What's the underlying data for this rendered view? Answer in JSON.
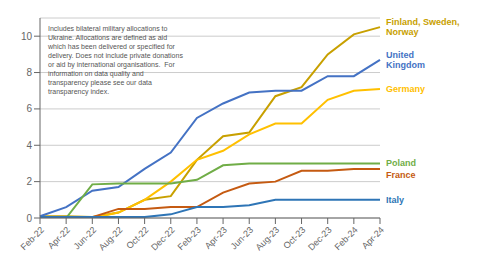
{
  "chart_data": {
    "type": "line",
    "categories": [
      "Feb-22",
      "Apr-22",
      "Jun-22",
      "Aug-22",
      "Oct-22",
      "Dec-22",
      "Feb-23",
      "Apr-23",
      "Jun-23",
      "Aug-23",
      "Oct-23",
      "Dec-23",
      "Feb-24",
      "Apr-24"
    ],
    "series": [
      {
        "name": "Finland, Sweden,\nNorway",
        "color": "#c8a000",
        "values": [
          0.1,
          0.1,
          0.05,
          0.3,
          1.0,
          1.2,
          3.2,
          4.5,
          4.7,
          6.7,
          7.2,
          9.0,
          10.1,
          10.5
        ]
      },
      {
        "name": "United\nKingdom",
        "color": "#4472c4",
        "values": [
          0.1,
          0.6,
          1.5,
          1.7,
          2.7,
          3.6,
          5.5,
          6.3,
          6.9,
          7.0,
          7.0,
          7.8,
          7.8,
          8.7
        ]
      },
      {
        "name": "Germany",
        "color": "#ffc000",
        "values": [
          0.0,
          0.0,
          0.0,
          0.3,
          1.0,
          2.0,
          3.2,
          3.7,
          4.6,
          5.2,
          5.2,
          6.5,
          7.0,
          7.1
        ]
      },
      {
        "name": "Poland",
        "color": "#70ad47",
        "values": [
          0.0,
          0.0,
          1.85,
          1.9,
          1.9,
          1.9,
          2.1,
          2.9,
          3.0,
          3.0,
          3.0,
          3.0,
          3.0,
          3.0
        ]
      },
      {
        "name": "France",
        "color": "#c55a11",
        "values": [
          0.05,
          0.05,
          0.05,
          0.5,
          0.5,
          0.6,
          0.6,
          1.4,
          1.9,
          2.0,
          2.6,
          2.6,
          2.7,
          2.7
        ]
      },
      {
        "name": "Italy",
        "color": "#2e75b6",
        "values": [
          0.05,
          0.05,
          0.05,
          0.05,
          0.05,
          0.2,
          0.6,
          0.6,
          0.7,
          1.0,
          1.0,
          1.0,
          1.0,
          1.0
        ]
      }
    ],
    "ylim": [
      0,
      11
    ],
    "yticks": [
      0,
      2,
      4,
      6,
      8,
      10
    ],
    "grid": true,
    "annotation": "Includes bilateral military allocations to\nUkraine. Allocations are defined as aid\nwhich has been delivered or specified for\ndelivery. Does not include private donations\nor aid by international organisations.  For\ninformation on data quality and\ntransparency please see our data\ntransparency index."
  }
}
